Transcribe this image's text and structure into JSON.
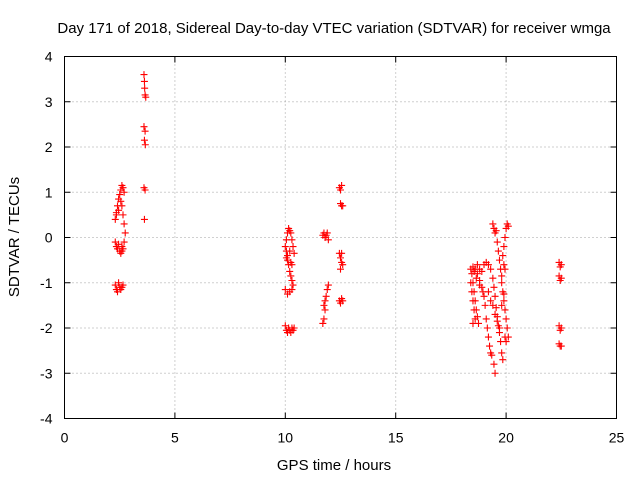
{
  "chart_data": {
    "type": "scatter",
    "title": "Day 171 of 2018, Sidereal Day-to-day VTEC variation (SDTVAR) for receiver wmga",
    "xlabel": "GPS time / hours",
    "ylabel": "SDTVAR / TECUs",
    "xlim": [
      0,
      25
    ],
    "ylim": [
      -4,
      4
    ],
    "xticks": [
      "0",
      "5",
      "10",
      "15",
      "20",
      "25"
    ],
    "yticks": [
      "4",
      "3",
      "2",
      "1",
      "0",
      "-1",
      "-2",
      "-3",
      "-4"
    ],
    "grid": true,
    "marker": "plus",
    "color": "#ff0000",
    "series": [
      {
        "name": "SDTVAR",
        "points": [
          [
            2.3,
            0.4
          ],
          [
            2.35,
            0.55
          ],
          [
            2.4,
            0.7
          ],
          [
            2.45,
            0.85
          ],
          [
            2.5,
            0.95
          ],
          [
            2.55,
            1.05
          ],
          [
            2.6,
            1.15
          ],
          [
            2.65,
            1.1
          ],
          [
            2.7,
            1.0
          ],
          [
            2.35,
            0.5
          ],
          [
            2.45,
            0.6
          ],
          [
            2.55,
            0.8
          ],
          [
            2.6,
            0.7
          ],
          [
            2.65,
            0.5
          ],
          [
            2.7,
            0.3
          ],
          [
            2.75,
            0.1
          ],
          [
            2.7,
            -0.1
          ],
          [
            2.65,
            -0.25
          ],
          [
            2.6,
            -0.3
          ],
          [
            2.3,
            -0.1
          ],
          [
            2.35,
            -0.2
          ],
          [
            2.4,
            -0.25
          ],
          [
            2.45,
            -0.15
          ],
          [
            2.5,
            -0.3
          ],
          [
            2.55,
            -0.35
          ],
          [
            2.6,
            -0.2
          ],
          [
            2.3,
            -1.05
          ],
          [
            2.35,
            -1.15
          ],
          [
            2.4,
            -1.2
          ],
          [
            2.45,
            -1.0
          ],
          [
            2.5,
            -1.1
          ],
          [
            2.55,
            -1.15
          ],
          [
            2.6,
            -1.1
          ],
          [
            2.65,
            -1.05
          ],
          [
            3.6,
            3.6
          ],
          [
            3.62,
            3.45
          ],
          [
            3.63,
            3.3
          ],
          [
            3.65,
            3.15
          ],
          [
            3.68,
            3.1
          ],
          [
            3.6,
            2.45
          ],
          [
            3.65,
            2.35
          ],
          [
            3.62,
            2.15
          ],
          [
            3.66,
            2.05
          ],
          [
            3.6,
            1.1
          ],
          [
            3.65,
            1.05
          ],
          [
            3.62,
            0.4
          ],
          [
            10.0,
            -0.2
          ],
          [
            10.05,
            -0.05
          ],
          [
            10.1,
            0.1
          ],
          [
            10.15,
            0.2
          ],
          [
            10.2,
            0.15
          ],
          [
            10.25,
            0.1
          ],
          [
            10.3,
            -0.05
          ],
          [
            10.35,
            -0.2
          ],
          [
            10.4,
            -0.35
          ],
          [
            10.05,
            -0.45
          ],
          [
            10.1,
            -0.5
          ],
          [
            10.15,
            -0.6
          ],
          [
            10.2,
            -0.75
          ],
          [
            10.25,
            -0.85
          ],
          [
            10.3,
            -0.95
          ],
          [
            10.35,
            -1.05
          ],
          [
            10.3,
            -1.15
          ],
          [
            10.2,
            -1.2
          ],
          [
            10.1,
            -1.25
          ],
          [
            10.0,
            -1.15
          ],
          [
            10.05,
            -0.3
          ],
          [
            10.1,
            -0.4
          ],
          [
            10.2,
            -0.3
          ],
          [
            10.25,
            -0.55
          ],
          [
            10.3,
            -0.6
          ],
          [
            10.0,
            -1.95
          ],
          [
            10.05,
            -2.05
          ],
          [
            10.1,
            -2.1
          ],
          [
            10.15,
            -2.0
          ],
          [
            10.2,
            -2.05
          ],
          [
            10.25,
            -2.1
          ],
          [
            10.3,
            -2.0
          ],
          [
            10.35,
            -2.05
          ],
          [
            10.4,
            -2.0
          ],
          [
            11.7,
            -1.9
          ],
          [
            11.75,
            -1.8
          ],
          [
            11.8,
            -1.6
          ],
          [
            11.85,
            -1.3
          ],
          [
            11.9,
            -1.15
          ],
          [
            11.95,
            -1.05
          ],
          [
            11.8,
            -1.4
          ],
          [
            11.75,
            -1.5
          ],
          [
            11.7,
            0.05
          ],
          [
            11.75,
            0.1
          ],
          [
            11.8,
            0.0
          ],
          [
            11.85,
            0.05
          ],
          [
            11.9,
            0.1
          ],
          [
            11.95,
            -0.05
          ],
          [
            12.45,
            1.1
          ],
          [
            12.5,
            1.05
          ],
          [
            12.55,
            1.15
          ],
          [
            12.5,
            0.75
          ],
          [
            12.55,
            0.7
          ],
          [
            12.6,
            0.7
          ],
          [
            12.45,
            -0.35
          ],
          [
            12.5,
            -0.45
          ],
          [
            12.55,
            -0.55
          ],
          [
            12.6,
            -0.6
          ],
          [
            12.5,
            -0.7
          ],
          [
            12.55,
            -0.35
          ],
          [
            12.45,
            -1.4
          ],
          [
            12.5,
            -1.45
          ],
          [
            12.55,
            -1.35
          ],
          [
            12.6,
            -1.4
          ],
          [
            18.4,
            -0.7
          ],
          [
            18.45,
            -0.8
          ],
          [
            18.5,
            -1.0
          ],
          [
            18.55,
            -1.2
          ],
          [
            18.6,
            -1.4
          ],
          [
            18.65,
            -1.6
          ],
          [
            18.7,
            -1.75
          ],
          [
            18.75,
            -1.9
          ],
          [
            18.4,
            -1.0
          ],
          [
            18.45,
            -1.2
          ],
          [
            18.5,
            -1.4
          ],
          [
            18.55,
            -1.6
          ],
          [
            18.6,
            -1.8
          ],
          [
            18.5,
            -1.9
          ],
          [
            18.6,
            -0.7
          ],
          [
            18.7,
            -0.8
          ],
          [
            18.8,
            -0.95
          ],
          [
            18.9,
            -1.1
          ],
          [
            19.0,
            -1.3
          ],
          [
            19.05,
            -1.5
          ],
          [
            19.1,
            -1.8
          ],
          [
            19.15,
            -2.0
          ],
          [
            19.2,
            -2.2
          ],
          [
            19.25,
            -2.4
          ],
          [
            19.3,
            -2.55
          ],
          [
            19.35,
            -2.6
          ],
          [
            18.7,
            -0.6
          ],
          [
            18.8,
            -0.7
          ],
          [
            18.9,
            -0.75
          ],
          [
            19.0,
            -0.6
          ],
          [
            19.1,
            -0.55
          ],
          [
            19.2,
            -0.6
          ],
          [
            19.3,
            -0.7
          ],
          [
            19.4,
            -0.9
          ],
          [
            19.45,
            -1.1
          ],
          [
            19.5,
            -1.3
          ],
          [
            19.55,
            -1.55
          ],
          [
            19.6,
            -1.75
          ],
          [
            19.65,
            -1.95
          ],
          [
            19.7,
            -2.1
          ],
          [
            19.75,
            -2.3
          ],
          [
            19.8,
            -2.55
          ],
          [
            19.85,
            -2.7
          ],
          [
            19.45,
            -2.8
          ],
          [
            19.5,
            -3.0
          ],
          [
            19.4,
            0.3
          ],
          [
            19.45,
            0.2
          ],
          [
            19.5,
            0.1
          ],
          [
            19.55,
            0.15
          ],
          [
            19.6,
            -0.1
          ],
          [
            19.65,
            -0.3
          ],
          [
            19.7,
            -0.5
          ],
          [
            19.75,
            -0.7
          ],
          [
            19.8,
            -0.85
          ],
          [
            19.8,
            -1.0
          ],
          [
            19.85,
            -1.2
          ],
          [
            19.9,
            -1.4
          ],
          [
            19.95,
            -1.6
          ],
          [
            20.0,
            -1.8
          ],
          [
            20.05,
            -2.0
          ],
          [
            20.1,
            -2.2
          ],
          [
            20.0,
            -2.3
          ],
          [
            19.95,
            -2.2
          ],
          [
            19.9,
            -0.2
          ],
          [
            19.95,
            0.0
          ],
          [
            20.0,
            0.2
          ],
          [
            20.05,
            0.3
          ],
          [
            20.1,
            0.25
          ],
          [
            19.85,
            -0.4
          ],
          [
            19.9,
            -0.6
          ],
          [
            19.95,
            -0.7
          ],
          [
            19.2,
            -1.2
          ],
          [
            19.3,
            -1.4
          ],
          [
            19.4,
            -1.5
          ],
          [
            19.5,
            -1.7
          ],
          [
            19.6,
            -1.85
          ],
          [
            19.7,
            -2.0
          ],
          [
            19.8,
            -1.5
          ],
          [
            19.9,
            -1.25
          ],
          [
            18.5,
            -0.65
          ],
          [
            18.55,
            -0.75
          ],
          [
            18.65,
            -0.9
          ],
          [
            18.8,
            -1.05
          ],
          [
            18.95,
            -1.2
          ],
          [
            22.4,
            -0.55
          ],
          [
            22.45,
            -0.65
          ],
          [
            22.5,
            -0.6
          ],
          [
            22.4,
            -0.85
          ],
          [
            22.45,
            -0.95
          ],
          [
            22.5,
            -0.9
          ],
          [
            22.4,
            -1.95
          ],
          [
            22.45,
            -2.05
          ],
          [
            22.5,
            -2.0
          ],
          [
            22.4,
            -2.35
          ],
          [
            22.45,
            -2.4
          ],
          [
            22.5,
            -2.4
          ]
        ]
      }
    ]
  }
}
